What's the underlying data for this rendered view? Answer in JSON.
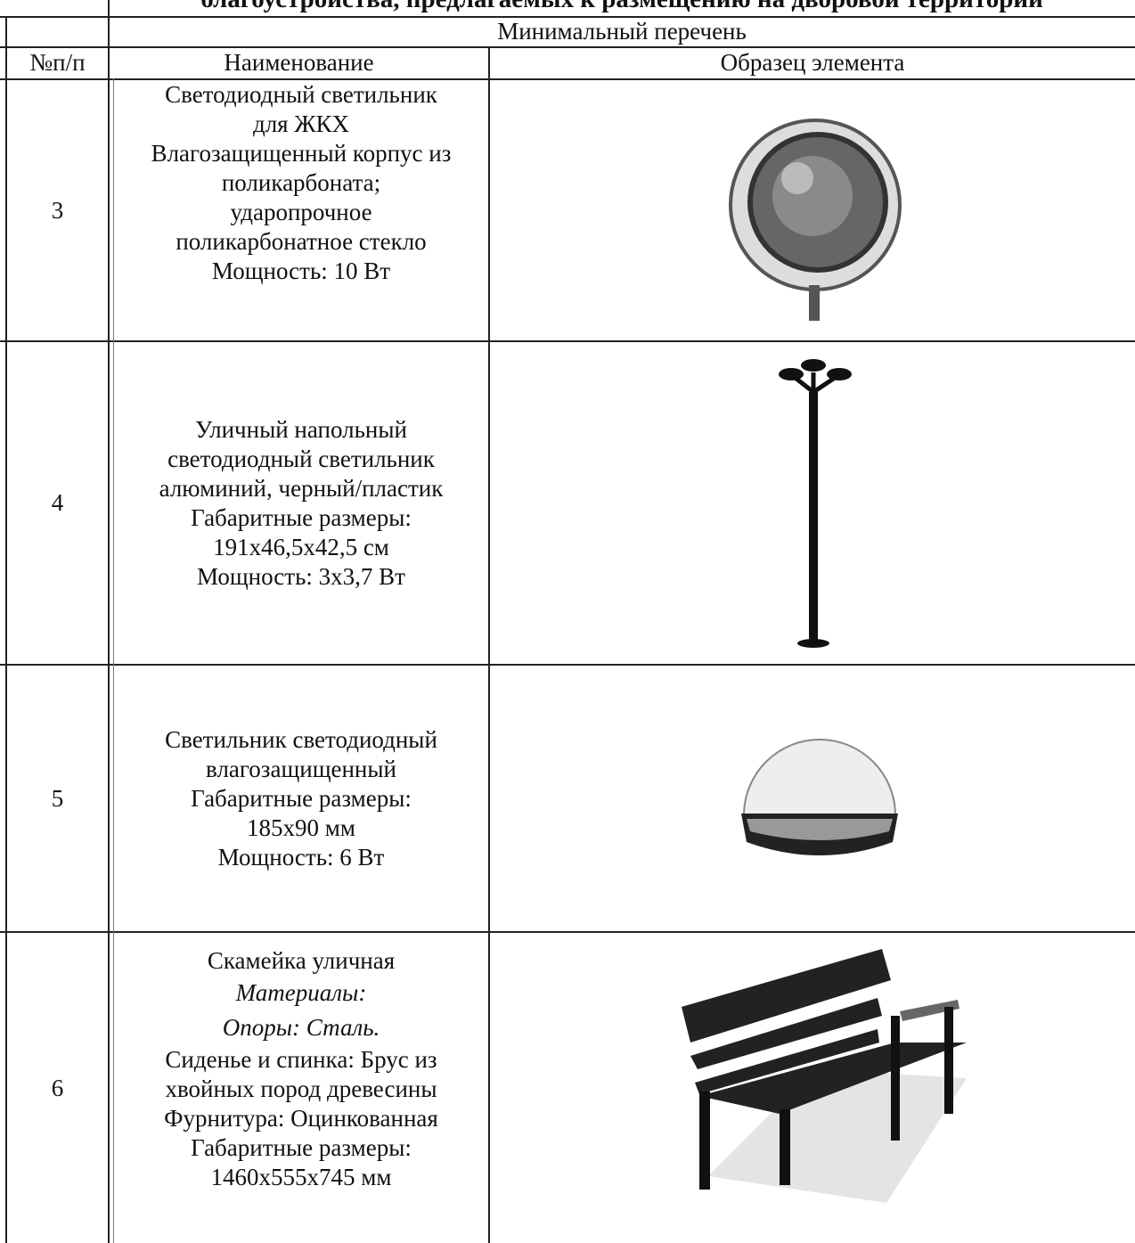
{
  "title": "благоустройства, предлагаемых к размещению на дворовой территории",
  "table": {
    "group_header": "Минимальный перечень",
    "headers": [
      "№п/п",
      "Наименование",
      "Образец элемента"
    ],
    "rows": [
      {
        "number": "3",
        "description": [
          "Светодиодный светильник",
          "для ЖКХ",
          "Влагозащищенный корпус из",
          "поликарбоната;",
          "ударопрочное",
          "поликарбонатное стекло",
          "Мощность: 10 Вт"
        ]
      },
      {
        "number": "4",
        "description": [
          "Уличный напольный",
          "светодиодный светильник",
          "алюминий, черный/пластик",
          "Габаритные размеры:",
          "191х46,5х42,5 см",
          "Мощность: 3х3,7 Вт"
        ]
      },
      {
        "number": "5",
        "description": [
          "Светильник светодиодный",
          "влагозащищенный",
          "Габаритные размеры:",
          "185х90 мм",
          "Мощность: 6 Вт"
        ]
      },
      {
        "number": "6",
        "description": [
          "Скамейка уличная",
          "Материалы:",
          "Опоры: Сталь.",
          "Сиденье и спинка: Брус из",
          "хвойных пород древесины",
          "Фурнитура: Оцинкованная",
          "Габаритные размеры:",
          "1460х555х745 мм"
        ]
      }
    ]
  }
}
